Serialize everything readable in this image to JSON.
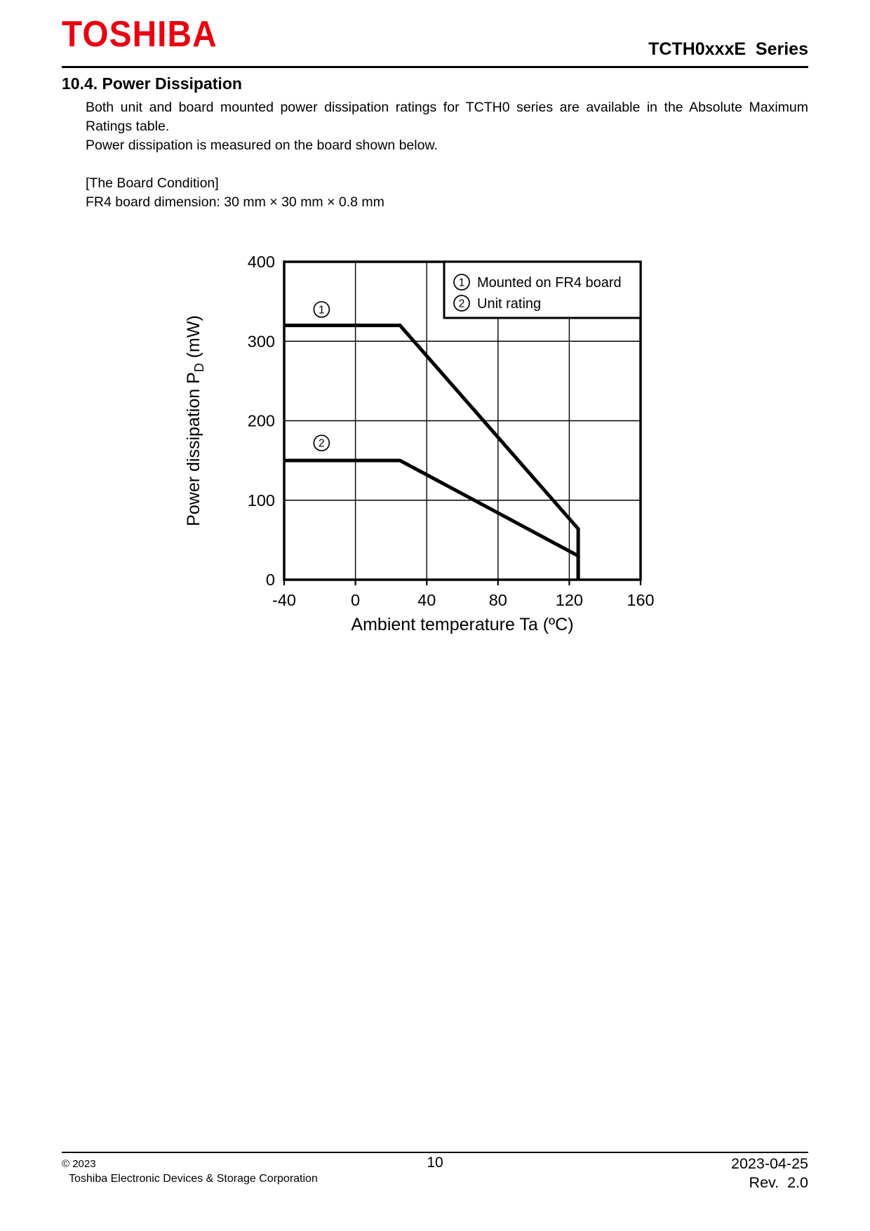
{
  "page": {
    "logo_text": "TOSHIBA",
    "series_title": "TCTH0xxxE  Series",
    "section": {
      "heading": "10.4. Power Dissipation",
      "paragraph_1": "Both unit and board mounted power dissipation ratings for TCTH0 series are available in the Absolute Maximum Ratings table.",
      "paragraph_2": "Power dissipation is measured on the board shown below.",
      "board_condition_heading": "[The Board Condition]",
      "board_condition_text": "FR4 board dimension: 30 mm × 30 mm × 0.8 mm"
    },
    "footer": {
      "copyright": "© 2023",
      "company": "Toshiba Electronic Devices & Storage Corporation",
      "page_number": "10",
      "date": "2023-04-25",
      "revision": "Rev.  2.0"
    },
    "colors": {
      "brand_red": "#e60012",
      "text": "#000000",
      "background": "#ffffff"
    }
  },
  "chart_data": {
    "type": "line",
    "title": "",
    "xlabel": "Ambient temperature Ta (ºC)",
    "ylabel": "Power dissipation PD (mW)",
    "ylabel_parts": {
      "pre": "Power dissipation P",
      "sub": "D",
      "post": " (mW)"
    },
    "xlim": [
      -40,
      160
    ],
    "ylim": [
      0,
      400
    ],
    "x_ticks": [
      -40,
      0,
      40,
      80,
      120,
      160
    ],
    "y_ticks": [
      0,
      100,
      200,
      300,
      400
    ],
    "grid": true,
    "legend_position": "top-right",
    "legend": [
      {
        "marker": "①",
        "number": "1",
        "label": "Mounted on FR4 board"
      },
      {
        "marker": "②",
        "number": "2",
        "label": "Unit rating"
      }
    ],
    "series": [
      {
        "name": "Mounted on FR4 board",
        "marker": "①",
        "number": "1",
        "points": [
          [
            -40,
            320
          ],
          [
            25,
            320
          ],
          [
            125,
            64
          ],
          [
            125,
            0
          ]
        ],
        "marker_at": [
          -19,
          340
        ]
      },
      {
        "name": "Unit rating",
        "marker": "②",
        "number": "2",
        "points": [
          [
            -40,
            150
          ],
          [
            25,
            150
          ],
          [
            125,
            30
          ],
          [
            125,
            0
          ]
        ],
        "marker_at": [
          -19,
          172
        ]
      }
    ]
  }
}
